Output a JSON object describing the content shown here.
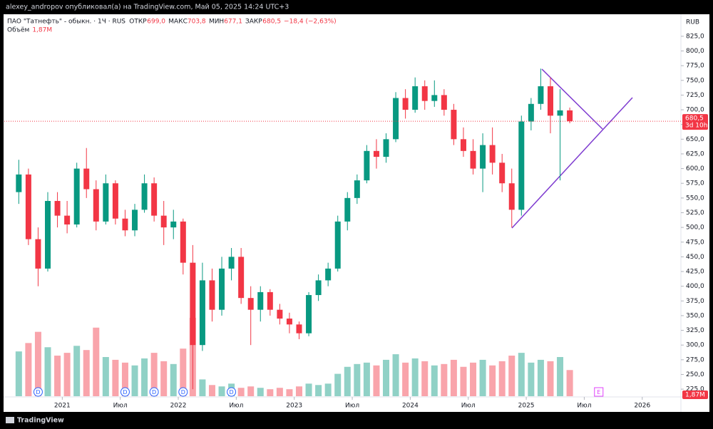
{
  "header": {
    "publisher": "alexey_andropov опубликовал(а) на TradingView.com, Май 05, 2025 14:24 UTC+3",
    "brand": "TradingView"
  },
  "chart_data": {
    "type": "candlestick",
    "symbol": "ПАО \"Татнефть\" - обыкн. · 1Ч · RUS",
    "legend_items": [
      {
        "name": "ОТКР",
        "text": "699,0"
      },
      {
        "name": "МАКС",
        "text": "703,8"
      },
      {
        "name": "МИН",
        "text": "677,1"
      },
      {
        "name": "ЗАКР",
        "text": "680,5"
      }
    ],
    "change": "−18,4 (−2,63%)",
    "currency": "RUB",
    "up_color": "#089981",
    "down_color": "#f23645",
    "x": [
      "2020-08",
      "2020-09",
      "2020-10",
      "2020-11",
      "2020-12",
      "2021-01",
      "2021-02",
      "2021-03",
      "2021-04",
      "2021-05",
      "2021-06",
      "2021-07",
      "2021-08",
      "2021-09",
      "2021-10",
      "2021-11",
      "2021-12",
      "2022-01",
      "2022-02",
      "2022-03",
      "2022-04",
      "2022-05",
      "2022-06",
      "2022-07",
      "2022-08",
      "2022-09",
      "2022-10",
      "2022-11",
      "2022-12",
      "2023-01",
      "2023-02",
      "2023-03",
      "2023-04",
      "2023-05",
      "2023-06",
      "2023-07",
      "2023-08",
      "2023-09",
      "2023-10",
      "2023-11",
      "2023-12",
      "2024-01",
      "2024-02",
      "2024-03",
      "2024-04",
      "2024-05",
      "2024-06",
      "2024-07",
      "2024-08",
      "2024-09",
      "2024-10",
      "2024-11",
      "2024-12",
      "2025-01",
      "2025-02",
      "2025-03",
      "2025-04",
      "2025-05"
    ],
    "open": [
      560,
      590,
      480,
      430,
      545,
      520,
      505,
      600,
      565,
      510,
      575,
      515,
      495,
      530,
      575,
      520,
      500,
      510,
      440,
      300,
      410,
      360,
      430,
      450,
      380,
      360,
      390,
      360,
      345,
      335,
      320,
      385,
      410,
      430,
      510,
      550,
      580,
      630,
      620,
      650,
      720,
      700,
      740,
      715,
      725,
      700,
      650,
      630,
      600,
      640,
      610,
      575,
      530,
      680,
      710,
      740,
      690,
      699
    ],
    "high": [
      615,
      600,
      500,
      560,
      560,
      545,
      610,
      635,
      580,
      590,
      580,
      530,
      540,
      590,
      585,
      545,
      530,
      515,
      470,
      440,
      430,
      450,
      465,
      465,
      400,
      400,
      395,
      370,
      355,
      340,
      390,
      420,
      440,
      520,
      560,
      590,
      640,
      650,
      660,
      730,
      735,
      755,
      750,
      750,
      735,
      710,
      670,
      650,
      660,
      670,
      625,
      600,
      690,
      720,
      770,
      755,
      735,
      703.8
    ],
    "low": [
      540,
      470,
      400,
      425,
      500,
      490,
      500,
      550,
      495,
      505,
      505,
      485,
      485,
      525,
      510,
      470,
      480,
      420,
      225,
      290,
      340,
      350,
      410,
      370,
      300,
      340,
      350,
      335,
      320,
      310,
      315,
      375,
      400,
      425,
      495,
      540,
      575,
      600,
      610,
      645,
      685,
      695,
      700,
      705,
      690,
      640,
      620,
      590,
      560,
      590,
      560,
      500,
      520,
      665,
      700,
      660,
      580,
      677.1
    ],
    "close": [
      590,
      480,
      430,
      545,
      520,
      505,
      600,
      565,
      510,
      575,
      515,
      495,
      530,
      575,
      520,
      500,
      510,
      440,
      300,
      410,
      360,
      430,
      450,
      380,
      360,
      390,
      360,
      345,
      335,
      320,
      385,
      410,
      430,
      510,
      550,
      580,
      630,
      620,
      650,
      720,
      700,
      740,
      715,
      725,
      700,
      650,
      630,
      600,
      640,
      610,
      575,
      530,
      680,
      710,
      740,
      690,
      699,
      680.5
    ],
    "volume": {
      "name": "Объём",
      "last_label": "1,87M",
      "values": [
        3.2,
        3.8,
        4.6,
        3.5,
        2.9,
        3.1,
        3.6,
        3.3,
        4.9,
        2.8,
        2.6,
        2.4,
        2.2,
        2.7,
        3.1,
        2.5,
        2.3,
        3.4,
        5.6,
        1.2,
        0.8,
        0.7,
        0.9,
        0.6,
        0.7,
        0.6,
        0.5,
        0.6,
        0.5,
        0.7,
        0.9,
        0.8,
        0.9,
        1.6,
        2.1,
        2.3,
        2.4,
        2.2,
        2.6,
        3.0,
        2.4,
        2.7,
        2.5,
        2.2,
        2.3,
        2.6,
        2.1,
        2.4,
        2.6,
        2.2,
        2.5,
        2.9,
        3.1,
        2.4,
        2.6,
        2.5,
        2.8,
        1.87
      ]
    },
    "last_price": {
      "value": 680.5,
      "label": "680,5",
      "countdown": "3d 10h"
    },
    "xlim": [
      "2020-07",
      "2026-05"
    ],
    "xticks": [
      {
        "value": "2021-01",
        "label": "2021"
      },
      {
        "value": "2021-07",
        "label": "Июл"
      },
      {
        "value": "2022-01",
        "label": "2022"
      },
      {
        "value": "2022-07",
        "label": "Июл"
      },
      {
        "value": "2023-01",
        "label": "2023"
      },
      {
        "value": "2023-07",
        "label": "Июл"
      },
      {
        "value": "2024-01",
        "label": "2024"
      },
      {
        "value": "2024-07",
        "label": "Июл"
      },
      {
        "value": "2025-01",
        "label": "2025"
      },
      {
        "value": "2025-07",
        "label": "Июл"
      },
      {
        "value": "2026-01",
        "label": "2026"
      }
    ],
    "ylim": [
      213,
      860
    ],
    "yticks": [
      {
        "value": 225,
        "label": "225,0"
      },
      {
        "value": 250,
        "label": "250,0"
      },
      {
        "value": 275,
        "label": "275,0"
      },
      {
        "value": 300,
        "label": "300,0"
      },
      {
        "value": 325,
        "label": "325,0"
      },
      {
        "value": 350,
        "label": "350,0"
      },
      {
        "value": 375,
        "label": "375,0"
      },
      {
        "value": 400,
        "label": "400,0"
      },
      {
        "value": 425,
        "label": "425,0"
      },
      {
        "value": 450,
        "label": "450,0"
      },
      {
        "value": 475,
        "label": "475,0"
      },
      {
        "value": 500,
        "label": "500,0"
      },
      {
        "value": 525,
        "label": "525,0"
      },
      {
        "value": 550,
        "label": "550,0"
      },
      {
        "value": 575,
        "label": "575,0"
      },
      {
        "value": 600,
        "label": "600,0"
      },
      {
        "value": 625,
        "label": "625,0"
      },
      {
        "value": 650,
        "label": "650,0"
      },
      {
        "value": 675,
        "label": "675,0"
      },
      {
        "value": 700,
        "label": "700,0"
      },
      {
        "value": 725,
        "label": "725,0"
      },
      {
        "value": 750,
        "label": "750,0"
      },
      {
        "value": 775,
        "label": "775,0"
      },
      {
        "value": 800,
        "label": "800,0"
      },
      {
        "value": 825,
        "label": "825,0"
      }
    ],
    "grid": false,
    "markers": [
      {
        "x": "2020-10",
        "label": "D"
      },
      {
        "x": "2021-07",
        "label": "D"
      },
      {
        "x": "2021-10",
        "label": "D"
      },
      {
        "x": "2022-01",
        "label": "D"
      },
      {
        "x": "2022-06",
        "label": "D"
      },
      {
        "x": "2025-08",
        "label": "E"
      }
    ]
  }
}
